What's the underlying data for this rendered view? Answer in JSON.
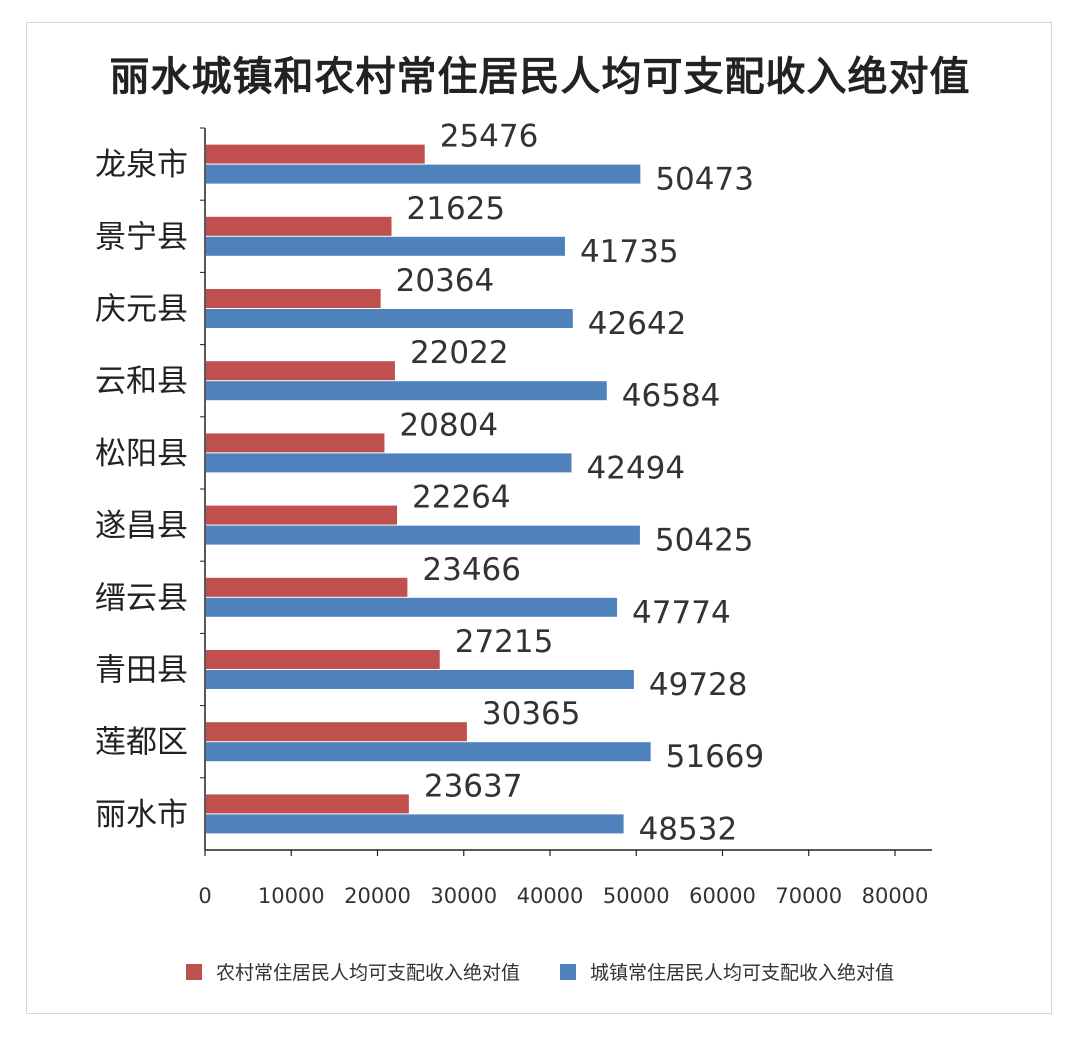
{
  "chart_data": {
    "type": "bar",
    "orientation": "horizontal",
    "title": "丽水城镇和农村常住居民人均可支配收入绝对值",
    "categories": [
      "龙泉市",
      "景宁县",
      "庆元县",
      "云和县",
      "松阳县",
      "遂昌县",
      "缙云县",
      "青田县",
      "莲都区",
      "丽水市"
    ],
    "series": [
      {
        "name": "农村常住居民人均可支配收入绝对值",
        "color": "#c0504d",
        "values": [
          25476,
          21625,
          20364,
          22022,
          20804,
          22264,
          23466,
          27215,
          30365,
          23637
        ]
      },
      {
        "name": "城镇常住居民人均可支配收入绝对值",
        "color": "#4f81bd",
        "values": [
          50473,
          41735,
          42642,
          46584,
          42494,
          50425,
          47774,
          49728,
          51669,
          48532
        ]
      }
    ],
    "x_ticks": [
      "0",
      "10000",
      "20000",
      "30000",
      "40000",
      "50000",
      "60000",
      "70000",
      "80000"
    ],
    "xlim": [
      0,
      80000
    ],
    "grid": false,
    "legend_position": "bottom"
  }
}
